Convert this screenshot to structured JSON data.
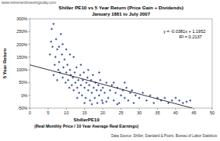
{
  "chart_data": {
    "type": "scatter",
    "title": "Shiller PE10 vs 5 Year Return (Price Gain + Dividends)",
    "subtitle": "January 1881 to July 2007",
    "x_label": "ShillerPE10",
    "y_label": "5 Year Return",
    "annotations": [
      "www.retirementinvestingtoday.com",
      "y = -0.0381x + 1.1952",
      "R² = 0.2137",
      "(Real Monthly Price / 10 Year Average Real Earnings)",
      "Data Source: Shiller, Standard & Poors, Bureau of Labor Statistics"
    ],
    "x": [
      5.5,
      5.8,
      6.0,
      6.2,
      6.5,
      6.8,
      7.0,
      7.2,
      7.5,
      7.8,
      8.0,
      8.2,
      8.5,
      8.8,
      9.0,
      9.2,
      9.5,
      9.8,
      10.0,
      10.3,
      10.5,
      10.8,
      11.0,
      11.2,
      11.5,
      11.8,
      12.0,
      12.3,
      12.5,
      12.8,
      13.0,
      13.3,
      13.5,
      13.8,
      14.0,
      14.3,
      14.5,
      14.8,
      15.0,
      15.3,
      15.5,
      15.8,
      16.0,
      16.3,
      16.5,
      16.8,
      17.0,
      17.3,
      17.5,
      17.8,
      18.0,
      18.3,
      18.5,
      18.8,
      19.0,
      19.3,
      19.5,
      19.8,
      20.0,
      20.5,
      21.0,
      21.5,
      22.0,
      22.5,
      23.0,
      23.5,
      24.0,
      24.5,
      25.0,
      25.5,
      26.0,
      26.5,
      27.0,
      27.5,
      28.0,
      28.5,
      29.0,
      30.0,
      31.0,
      32.0,
      33.0,
      34.0,
      35.0,
      36.0,
      37.0,
      38.0,
      39.0,
      40.0,
      41.0,
      42.0,
      43.0,
      44.0,
      23.0,
      21.0,
      12.0,
      10.0,
      8.0,
      14.0,
      16.0,
      19.0,
      9.0,
      11.0,
      6.5,
      7.5,
      13.0,
      15.0,
      17.0,
      20.0,
      26.0,
      24.0
    ],
    "values": [
      1.6,
      2.1,
      2.6,
      1.9,
      2.8,
      1.2,
      1.5,
      2.2,
      1.8,
      1.0,
      1.3,
      0.9,
      2.4,
      1.6,
      0.7,
      1.1,
      1.4,
      0.5,
      0.9,
      1.2,
      0.6,
      0.3,
      1.0,
      0.8,
      0.4,
      0.7,
      0.2,
      0.9,
      0.5,
      1.1,
      0.3,
      0.6,
      0.1,
      0.8,
      0.4,
      0.0,
      0.6,
      0.9,
      0.3,
      -0.1,
      0.5,
      0.7,
      0.2,
      0.4,
      -0.2,
      0.6,
      0.1,
      0.8,
      0.3,
      -0.1,
      0.5,
      0.2,
      -0.3,
      0.4,
      0.0,
      0.6,
      0.2,
      -0.2,
      0.3,
      0.1,
      0.5,
      -0.1,
      0.2,
      0.4,
      -0.2,
      0.1,
      0.3,
      -0.3,
      0.0,
      0.2,
      -0.1,
      0.3,
      -0.2,
      0.1,
      0.2,
      -0.3,
      0.0,
      -0.1,
      0.1,
      -0.2,
      0.0,
      -0.3,
      -0.1,
      -0.2,
      -0.1,
      -0.3,
      -0.2,
      -0.1,
      -0.2,
      -0.3,
      -0.25,
      -0.2,
      0.5,
      -0.25,
      1.5,
      1.8,
      1.9,
      1.2,
      1.0,
      0.9,
      2.0,
      1.6,
      0.8,
      0.6,
      -0.1,
      -0.3,
      -0.35,
      -0.3,
      0.5,
      -0.35
    ],
    "trendline": {
      "slope": -0.0381,
      "intercept": 1.1952
    },
    "color": "#1f3a93",
    "marker": "diamond",
    "xlim": [
      0,
      50
    ],
    "xticks": [
      0,
      5,
      10,
      15,
      20,
      25,
      30,
      35,
      40,
      45,
      50
    ],
    "ylim": [
      -0.5,
      3
    ],
    "yticks": [
      {
        "value": -0.5,
        "label": "-50%"
      },
      {
        "value": 0,
        "label": "0%"
      },
      {
        "value": 0.5,
        "label": "50%"
      },
      {
        "value": 1,
        "label": "100%"
      },
      {
        "value": 1.5,
        "label": "150%"
      },
      {
        "value": 2,
        "label": "200%"
      },
      {
        "value": 2.5,
        "label": "250%"
      },
      {
        "value": 3,
        "label": "300%"
      }
    ],
    "grid": false
  }
}
